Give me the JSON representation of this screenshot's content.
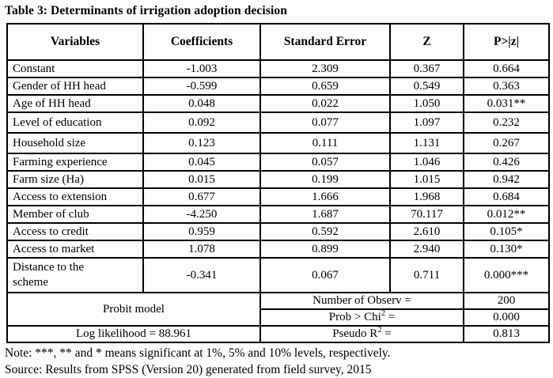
{
  "title": "Table 3: Determinants of irrigation adoption decision",
  "colors": {
    "background": "#ffffff",
    "ink": "#000000",
    "border": "#000000"
  },
  "table": {
    "headers": [
      "Variables",
      "Coefficients",
      "Standard Error",
      "Z",
      "P>|z|"
    ],
    "rows": [
      {
        "variable": "Constant",
        "coefficient": "-1.003",
        "std_error": "2.309",
        "z": "0.367",
        "p": "0.664"
      },
      {
        "variable": "Gender of HH head",
        "coefficient": "-0.599",
        "std_error": "0.659",
        "z": "0.549",
        "p": "0.363"
      },
      {
        "variable": "Age of HH head",
        "coefficient": "0.048",
        "std_error": "0.022",
        "z": "1.050",
        "p": "0.031**"
      },
      {
        "variable": "Level of education",
        "coefficient": "0.092",
        "std_error": "0.077",
        "z": "1.097",
        "p": "0.232"
      },
      {
        "variable": "Household size",
        "coefficient": "0.123",
        "std_error": "0.111",
        "z": "1.131",
        "p": "0.267"
      },
      {
        "variable": "Farming experience",
        "coefficient": "0.045",
        "std_error": "0.057",
        "z": "1.046",
        "p": "0.426"
      },
      {
        "variable": "Farm size (Ha)",
        "coefficient": "0.015",
        "std_error": "0.199",
        "z": "1.015",
        "p": "0.942"
      },
      {
        "variable": "Access to extension",
        "coefficient": "0.677",
        "std_error": "1.666",
        "z": "1.968",
        "p": "0.684"
      },
      {
        "variable": "Member of club",
        "coefficient": "-4.250",
        "std_error": "1.687",
        "z": "70.117",
        "p": "0.012**"
      },
      {
        "variable": "Access to credit",
        "coefficient": "0.959",
        "std_error": "0.592",
        "z": "2.610",
        "p": "0.105*"
      },
      {
        "variable": "Access to market",
        "coefficient": "1.078",
        "std_error": "0.899",
        "z": "2.940",
        "p": "0.130*"
      },
      {
        "variable": "Distance to the scheme",
        "coefficient": "-0.341",
        "std_error": "0.067",
        "z": "0.711",
        "p": "0.000***"
      }
    ],
    "summary": {
      "probit_label": "Probit model",
      "log_likelihood_label": "Log likelihood = 88.961",
      "stats": [
        {
          "label_pre": "Number of Observ =",
          "label_sup": "",
          "label_post": "",
          "value": "200"
        },
        {
          "label_pre": "Prob > Chi",
          "label_sup": "2",
          "label_post": " =",
          "value": "0.000"
        },
        {
          "label_pre": "Pseudo R",
          "label_sup": "2",
          "label_post": " =",
          "value": "0.813"
        }
      ]
    }
  },
  "notes": {
    "note": "Note: ***, ** and * means significant at 1%, 5% and 10% levels, respectively.",
    "source": "Source: Results from SPSS (Version 20) generated from field survey, 2015"
  }
}
